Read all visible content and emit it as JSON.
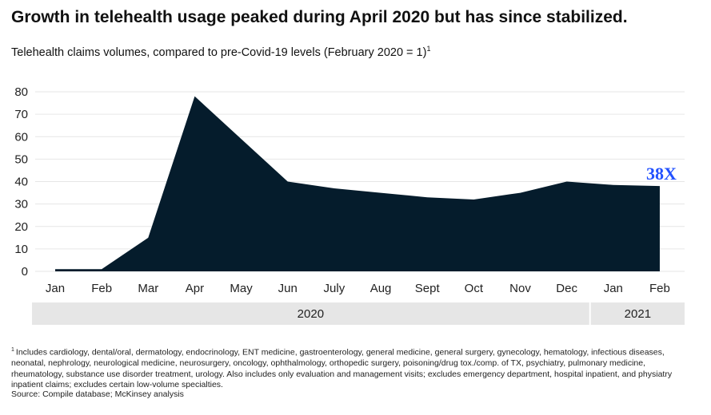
{
  "title": "Growth in telehealth usage peaked during April 2020 but has since stabilized.",
  "subtitle": "Telehealth claims volumes, compared to pre-Covid-19 levels (February 2020 = 1)",
  "subtitle_footnote_mark": "1",
  "footnote_mark": "1",
  "footnote": "Includes cardiology, dental/oral, dermatology, endocrinology, ENT medicine, gastroenterology, general medicine, general surgery, gynecology, hematology, infectious diseases, neonatal, nephrology, neurological medicine, neurosurgery, oncology, ophthalmology, orthopedic surgery, poisoning/drug tox./comp. of TX, psychiatry, pulmonary medicine, rheumatology, substance use disorder treatment, urology. Also includes only evaluation and management visits; excludes emergency department, hospital inpatient, and physiatry inpatient claims; excludes certain low-volume specialties.",
  "source": "Source: Compile database; McKinsey analysis",
  "chart_data": {
    "type": "area",
    "categories": [
      "Jan",
      "Feb",
      "Mar",
      "Apr",
      "May",
      "Jun",
      "July",
      "Aug",
      "Sept",
      "Oct",
      "Nov",
      "Dec",
      "Jan",
      "Feb"
    ],
    "values": [
      1,
      1,
      15,
      78,
      59,
      40,
      37,
      35,
      33,
      32,
      35,
      40,
      38.5,
      38
    ],
    "ylim": [
      0,
      80
    ],
    "yticks": [
      0,
      10,
      20,
      30,
      40,
      50,
      60,
      70,
      80
    ],
    "grid": true,
    "annotation": "38X",
    "year_groups": [
      {
        "label": "2020",
        "count": 12
      },
      {
        "label": "2021",
        "count": 2
      }
    ],
    "colors": {
      "area": "#051C2C",
      "annotation": "#2251FF",
      "grid": "#E6E6E6",
      "year_band": "#E6E6E6"
    }
  }
}
